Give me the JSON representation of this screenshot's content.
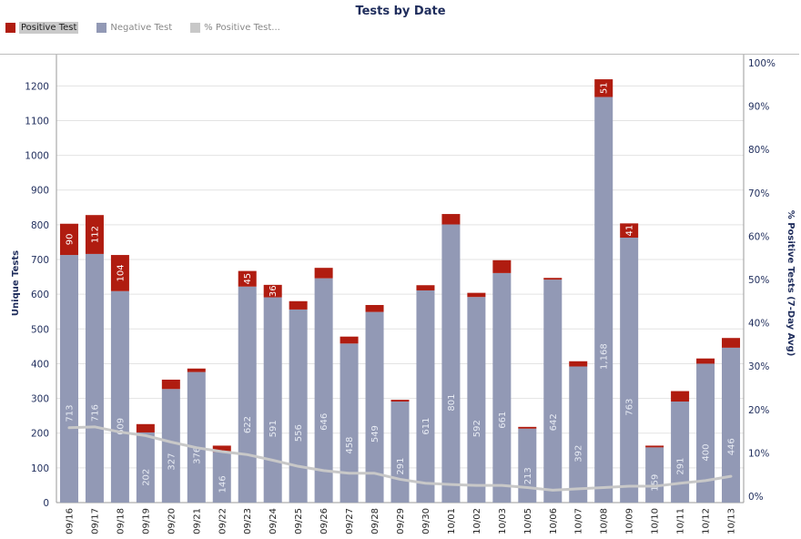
{
  "colors": {
    "positive": "#b01c10",
    "negative": "#9299b5",
    "pct_line": "#c8c8c8",
    "title": "#1f2d5c"
  },
  "legend": [
    {
      "label": "Positive Test",
      "color": "#b01c10"
    },
    {
      "label": "Negative Test",
      "color": "#9299b5"
    },
    {
      "label": "% Positive Test...",
      "color": "#c8c8c8"
    }
  ],
  "chart_data": {
    "type": "bar",
    "stacked": true,
    "title": "Tests by Date",
    "ylabel": "Unique Tests",
    "y2label": "% Positive Tests (7-Day Avg)",
    "ylim": [
      0,
      1290
    ],
    "y2lim": [
      0,
      100
    ],
    "yticks": [
      0,
      100,
      200,
      300,
      400,
      500,
      600,
      700,
      800,
      900,
      1000,
      1100,
      1200
    ],
    "y2ticks": [
      "0%",
      "10%",
      "20%",
      "30%",
      "40%",
      "50%",
      "60%",
      "70%",
      "80%",
      "90%",
      "100%"
    ],
    "grid": true,
    "legend_position": "top-left",
    "categories": [
      "09/16",
      "09/17",
      "09/18",
      "09/19",
      "09/20",
      "09/21",
      "09/22",
      "09/23",
      "09/24",
      "09/25",
      "09/26",
      "09/27",
      "09/28",
      "09/29",
      "09/30",
      "10/01",
      "10/02",
      "10/03",
      "10/05",
      "10/06",
      "10/07",
      "10/08",
      "10/09",
      "10/10",
      "10/11",
      "10/12",
      "10/13"
    ],
    "series": [
      {
        "name": "Negative Test",
        "values": [
          713,
          716,
          609,
          202,
          327,
          376,
          146,
          622,
          591,
          556,
          646,
          458,
          549,
          291,
          611,
          801,
          592,
          661,
          213,
          642,
          392,
          1168,
          763,
          159,
          291,
          400,
          446
        ],
        "labels": [
          "713",
          "716",
          "609",
          "202",
          "327",
          "376",
          "146",
          "622",
          "591",
          "556",
          "646",
          "458",
          "549",
          "291",
          "611",
          "801",
          "592",
          "661",
          "213",
          "642",
          "392",
          "1,168",
          "763",
          "159",
          "291",
          "400",
          "446"
        ]
      },
      {
        "name": "Positive Test",
        "values": [
          90,
          112,
          104,
          24,
          27,
          10,
          18,
          45,
          36,
          24,
          30,
          20,
          20,
          5,
          15,
          30,
          12,
          37,
          5,
          5,
          15,
          51,
          41,
          5,
          30,
          15,
          28
        ],
        "labels": [
          "90",
          "112",
          "104",
          "",
          "",
          "",
          "",
          "45",
          "36",
          "",
          "",
          "",
          "",
          "",
          "",
          "",
          "",
          "",
          "",
          "",
          "",
          "51",
          "41",
          "",
          "",
          "",
          ""
        ]
      },
      {
        "name": "% Positive Test...",
        "axis": "right",
        "values": [
          15.8,
          16.0,
          14.8,
          14.0,
          12.5,
          11.2,
          10.3,
          9.6,
          8.3,
          6.9,
          5.9,
          5.3,
          5.3,
          3.9,
          3.0,
          2.7,
          2.5,
          2.5,
          2.0,
          1.4,
          1.7,
          2.0,
          2.3,
          2.3,
          3.0,
          3.6,
          4.6
        ]
      }
    ]
  }
}
